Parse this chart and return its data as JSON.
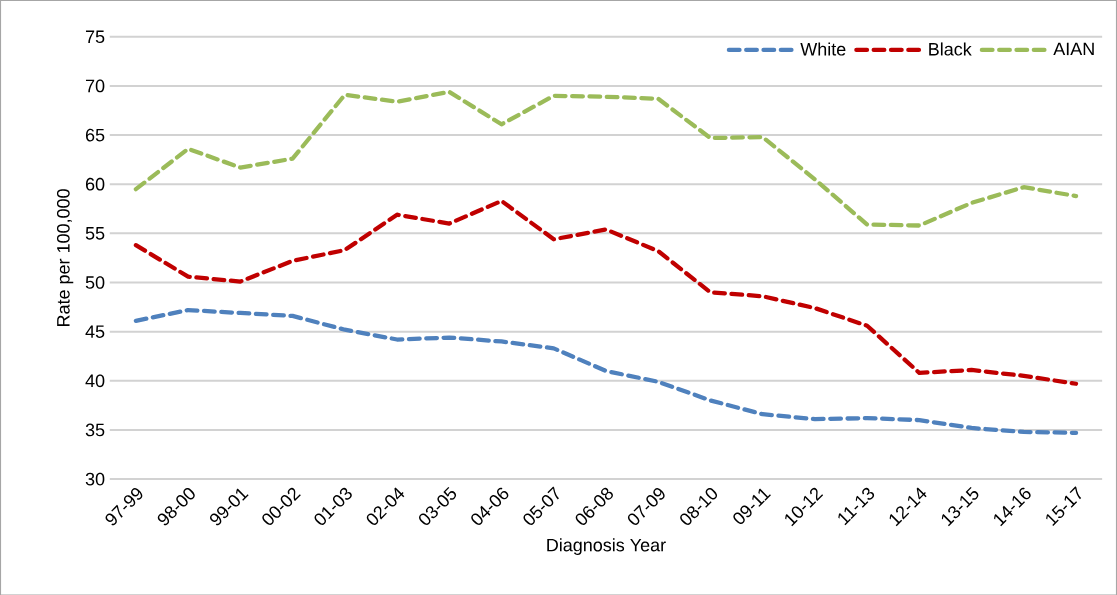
{
  "chart_data": {
    "type": "line",
    "xlabel": "Diagnosis Year",
    "ylabel": "Rate per 100,000",
    "categories": [
      "97-99",
      "98-00",
      "99-01",
      "00-02",
      "01-03",
      "02-04",
      "03-05",
      "04-06",
      "05-07",
      "06-08",
      "07-09",
      "08-10",
      "09-11",
      "10-12",
      "11-13",
      "12-14",
      "13-15",
      "14-16",
      "15-17"
    ],
    "series": [
      {
        "name": "White",
        "color": "#4f81bd",
        "values": [
          46.1,
          47.2,
          46.9,
          46.6,
          45.2,
          44.2,
          44.4,
          44.0,
          43.3,
          41.0,
          39.9,
          38.0,
          36.6,
          36.1,
          36.2,
          36.0,
          35.2,
          34.8,
          34.7
        ]
      },
      {
        "name": "Black",
        "color": "#c00000",
        "values": [
          53.8,
          50.6,
          50.1,
          52.2,
          53.3,
          56.9,
          56.0,
          58.3,
          54.4,
          55.4,
          53.2,
          49.0,
          48.6,
          47.4,
          45.6,
          40.8,
          41.1,
          40.5,
          39.7
        ]
      },
      {
        "name": "AIAN",
        "color": "#9bbb59",
        "values": [
          59.5,
          63.6,
          61.7,
          62.6,
          69.1,
          68.4,
          69.4,
          66.1,
          69.0,
          68.9,
          68.7,
          64.7,
          64.8,
          60.5,
          55.9,
          55.8,
          58.1,
          59.7,
          58.8
        ]
      }
    ],
    "ylim": [
      30,
      75
    ],
    "yticks": [
      30,
      35,
      40,
      45,
      50,
      55,
      60,
      65,
      70,
      75
    ],
    "grid": "y",
    "legend": "top right",
    "line_style": "dashed",
    "marker": "none"
  }
}
